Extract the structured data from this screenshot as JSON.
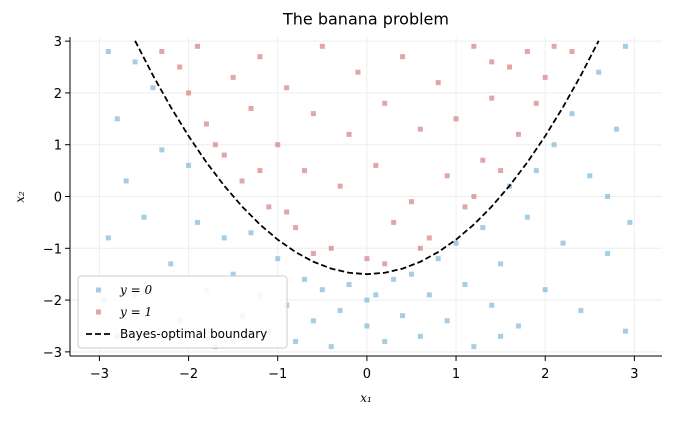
{
  "chart_data": {
    "type": "scatter",
    "title": "The banana problem",
    "x_label": "x₁",
    "y_label": "x₂",
    "xlim": [
      -3.33,
      3.31
    ],
    "ylim": [
      -3.08,
      3.08
    ],
    "xticks": [
      {
        "value": -3,
        "label": "−3"
      },
      {
        "value": -2,
        "label": "−2"
      },
      {
        "value": -1,
        "label": "−1"
      },
      0,
      1,
      2,
      3
    ],
    "yticks": [
      {
        "value": -3,
        "label": "−3"
      },
      {
        "value": -2,
        "label": "−2"
      },
      {
        "value": -1,
        "label": "−1"
      },
      0,
      1,
      2,
      3
    ],
    "grid": true,
    "legend": "lower left",
    "series": [
      {
        "name": "y = 0",
        "color": "#4c9bc7",
        "x": [
          -2.9,
          -2.8,
          -2.7,
          -2.9,
          -2.6,
          -2.8,
          -2.4,
          -2.3,
          -2.5,
          -2.2,
          -2.1,
          -2.0,
          -1.9,
          -1.8,
          -1.7,
          -1.6,
          -1.5,
          -1.4,
          -1.3,
          -1.2,
          -1.1,
          -1.0,
          -0.9,
          -0.8,
          -0.7,
          -0.6,
          -0.5,
          -0.4,
          -0.3,
          -0.2,
          0.0,
          0.1,
          0.2,
          0.3,
          0.4,
          0.5,
          0.6,
          0.7,
          0.8,
          0.9,
          1.0,
          1.1,
          1.2,
          1.3,
          1.4,
          1.5,
          1.6,
          1.7,
          1.8,
          1.9,
          2.0,
          2.1,
          2.2,
          2.3,
          2.4,
          2.5,
          2.6,
          2.7,
          2.8,
          2.9,
          2.9,
          2.7,
          -2.6,
          -2.95,
          2.95,
          -1.5,
          1.5,
          0
        ],
        "values": [
          2.8,
          1.5,
          0.3,
          -0.8,
          -1.9,
          -2.7,
          2.1,
          0.9,
          -0.4,
          -1.3,
          -2.4,
          0.6,
          -0.5,
          -1.8,
          -2.9,
          -0.8,
          -1.5,
          -2.3,
          -0.7,
          -1.9,
          -2.6,
          -1.2,
          -2.1,
          -2.8,
          -1.6,
          -2.4,
          -1.8,
          -2.9,
          -2.2,
          -1.7,
          -2.5,
          -1.9,
          -2.8,
          -1.6,
          -2.3,
          -1.5,
          -2.7,
          -1.9,
          -1.2,
          -2.4,
          -0.9,
          -1.7,
          -2.9,
          -0.6,
          -2.1,
          -1.3,
          0.2,
          -2.5,
          -0.4,
          0.5,
          -1.8,
          1.0,
          -0.9,
          1.6,
          -2.2,
          0.4,
          2.4,
          -1.1,
          1.3,
          2.9,
          -2.6,
          0.0,
          2.6,
          -2.0,
          -0.5,
          -2.8,
          -2.7,
          -2.0
        ]
      },
      {
        "name": "y = 1",
        "color": "#c44e52",
        "x": [
          -2.3,
          -2.0,
          -1.9,
          -1.8,
          -1.6,
          -1.5,
          -1.4,
          -1.3,
          -1.2,
          -1.1,
          -1.0,
          -0.9,
          -0.8,
          -0.7,
          -0.6,
          -0.5,
          -0.4,
          -0.3,
          -0.2,
          -0.1,
          0.0,
          0.1,
          0.2,
          0.3,
          0.4,
          0.5,
          0.6,
          0.7,
          0.8,
          0.9,
          1.0,
          1.1,
          1.2,
          1.3,
          1.4,
          1.5,
          1.6,
          1.7,
          1.8,
          1.9,
          2.0,
          2.1,
          2.3,
          -2.1,
          -1.7,
          -0.9,
          0.6,
          -0.6,
          1.2,
          -1.2,
          0.2,
          1.4
        ],
        "values": [
          2.8,
          2.0,
          2.9,
          1.4,
          0.8,
          2.3,
          0.3,
          1.7,
          2.7,
          -0.2,
          1.0,
          2.1,
          -0.6,
          0.5,
          1.6,
          2.9,
          -1.0,
          0.2,
          1.2,
          2.4,
          -1.2,
          0.6,
          1.8,
          -0.5,
          2.7,
          -0.1,
          1.3,
          -0.8,
          2.2,
          0.4,
          1.5,
          -0.2,
          2.9,
          0.7,
          1.9,
          0.5,
          2.5,
          1.2,
          2.8,
          1.8,
          2.3,
          2.9,
          2.8,
          2.5,
          1.0,
          -0.3,
          -1.0,
          -1.1,
          0.0,
          0.5,
          -1.3,
          2.6
        ]
      },
      {
        "name": "Bayes-optimal boundary",
        "type": "line",
        "color": "#000000",
        "dashed": true,
        "x": [
          -2.6,
          -2.4,
          -2.2,
          -2.0,
          -1.8,
          -1.6,
          -1.4,
          -1.2,
          -1.0,
          -0.8,
          -0.6,
          -0.4,
          -0.2,
          0,
          0.2,
          0.4,
          0.6,
          0.8,
          1.0,
          1.2,
          1.4,
          1.6,
          1.8,
          2.0,
          2.2,
          2.4,
          2.6
        ],
        "values": [
          3.007,
          2.34,
          1.727,
          1.167,
          0.66,
          0.207,
          -0.193,
          -0.54,
          -0.833,
          -1.073,
          -1.26,
          -1.393,
          -1.473,
          -1.5,
          -1.473,
          -1.393,
          -1.26,
          -1.073,
          -0.833,
          -0.54,
          -0.193,
          0.207,
          0.66,
          1.167,
          1.727,
          2.34,
          3.007
        ]
      }
    ]
  }
}
